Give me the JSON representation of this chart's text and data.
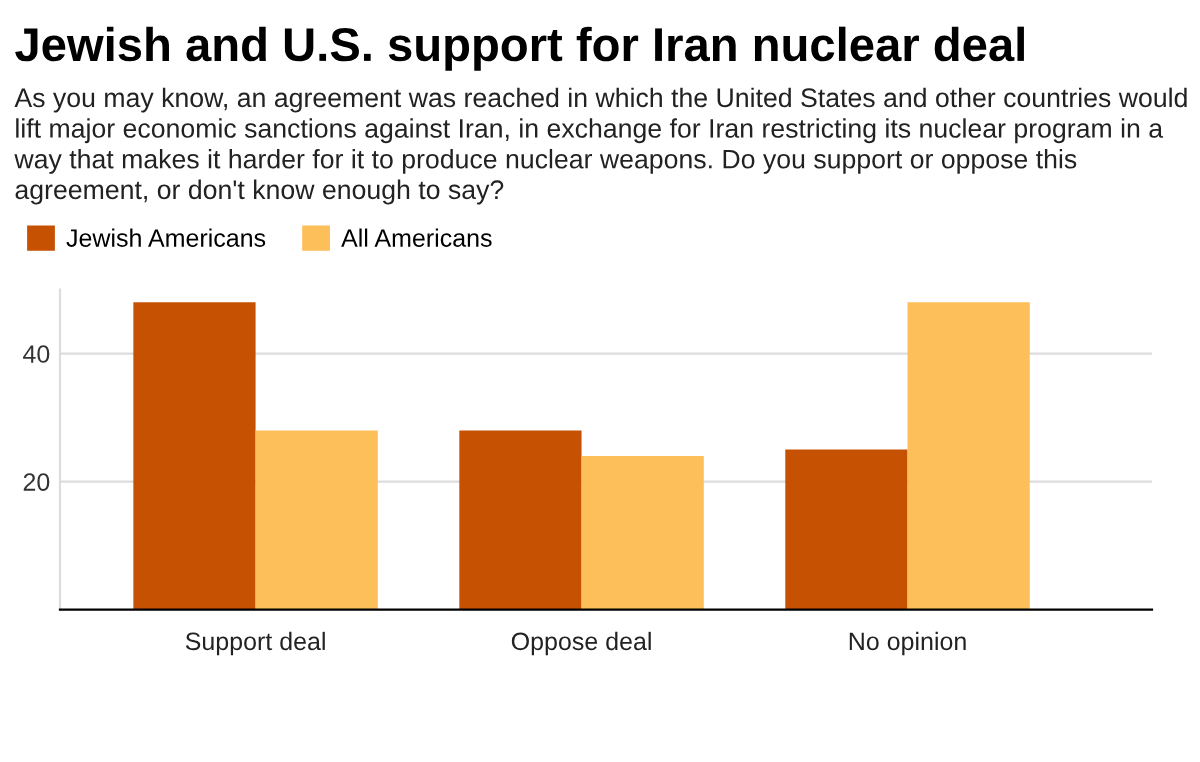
{
  "chart_data": {
    "type": "bar",
    "title": "Jewish and U.S. support for Iran nuclear deal",
    "subtitle": "As you may know, an agreement was reached in which the United States and other countries would lift major economic sanctions against Iran, in exchange for Iran restricting its nuclear program in a way that makes it harder for it to produce nuclear weapons. Do you support or oppose this agreement, or don't know enough to say?",
    "categories": [
      "Support deal",
      "Oppose deal",
      "No opinion"
    ],
    "series": [
      {
        "name": "Jewish Americans",
        "color": "#c65102",
        "values": [
          48,
          28,
          25
        ]
      },
      {
        "name": "All Americans",
        "color": "#fdbf5a",
        "values": [
          28,
          24,
          48
        ]
      }
    ],
    "ylim": [
      0,
      50
    ],
    "yticks": [
      20,
      40
    ],
    "grid": "y",
    "legend": "top left"
  }
}
